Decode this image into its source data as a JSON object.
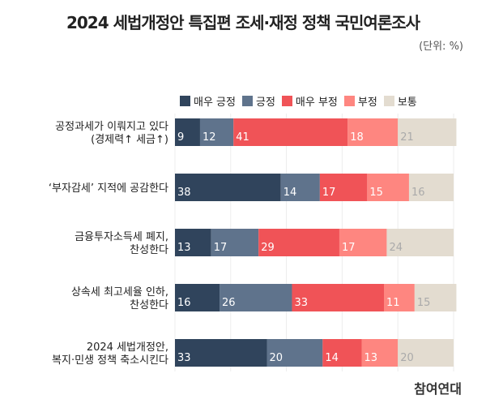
{
  "title": "2024 세법개정안 특집편 조세·재정 정책 국민여론조사",
  "unit": "(단위: %)",
  "brand": "참여연대",
  "chart_data": {
    "type": "bar",
    "stacked": true,
    "orientation": "horizontal",
    "title": "2024 세법개정안 특집편 조세·재정 정책 국민여론조사",
    "legend_position": "top-right",
    "categories": [
      [
        "공정과세가 이뤄지고 있다",
        "(경제력↑ 세금↑)"
      ],
      [
        "‘부자감세’ 지적에 공감한다"
      ],
      [
        "금융투자소득세 폐지,",
        "찬성한다"
      ],
      [
        "상속세 최고세율 인하,",
        "찬성한다"
      ],
      [
        "2024 세법개정안,",
        "복지·민생 정책 축소시킨다"
      ]
    ],
    "series": [
      {
        "name": "매우 긍정",
        "color": "#30445c",
        "label_color": "#ffffff",
        "values": [
          9,
          38,
          13,
          16,
          33
        ]
      },
      {
        "name": "긍정",
        "color": "#5f738c",
        "label_color": "#ffffff",
        "values": [
          12,
          14,
          17,
          26,
          20
        ]
      },
      {
        "name": "매우 부정",
        "color": "#f05357",
        "label_color": "#ffffff",
        "values": [
          41,
          17,
          29,
          33,
          14
        ]
      },
      {
        "name": "부정",
        "color": "#fe8680",
        "label_color": "#ffffff",
        "values": [
          18,
          15,
          17,
          11,
          13
        ]
      },
      {
        "name": "보통",
        "color": "#e3dcd0",
        "label_color": "#aaaaaa",
        "values": [
          21,
          16,
          24,
          15,
          20
        ]
      }
    ],
    "xlim": [
      0,
      100
    ],
    "grid": true
  }
}
